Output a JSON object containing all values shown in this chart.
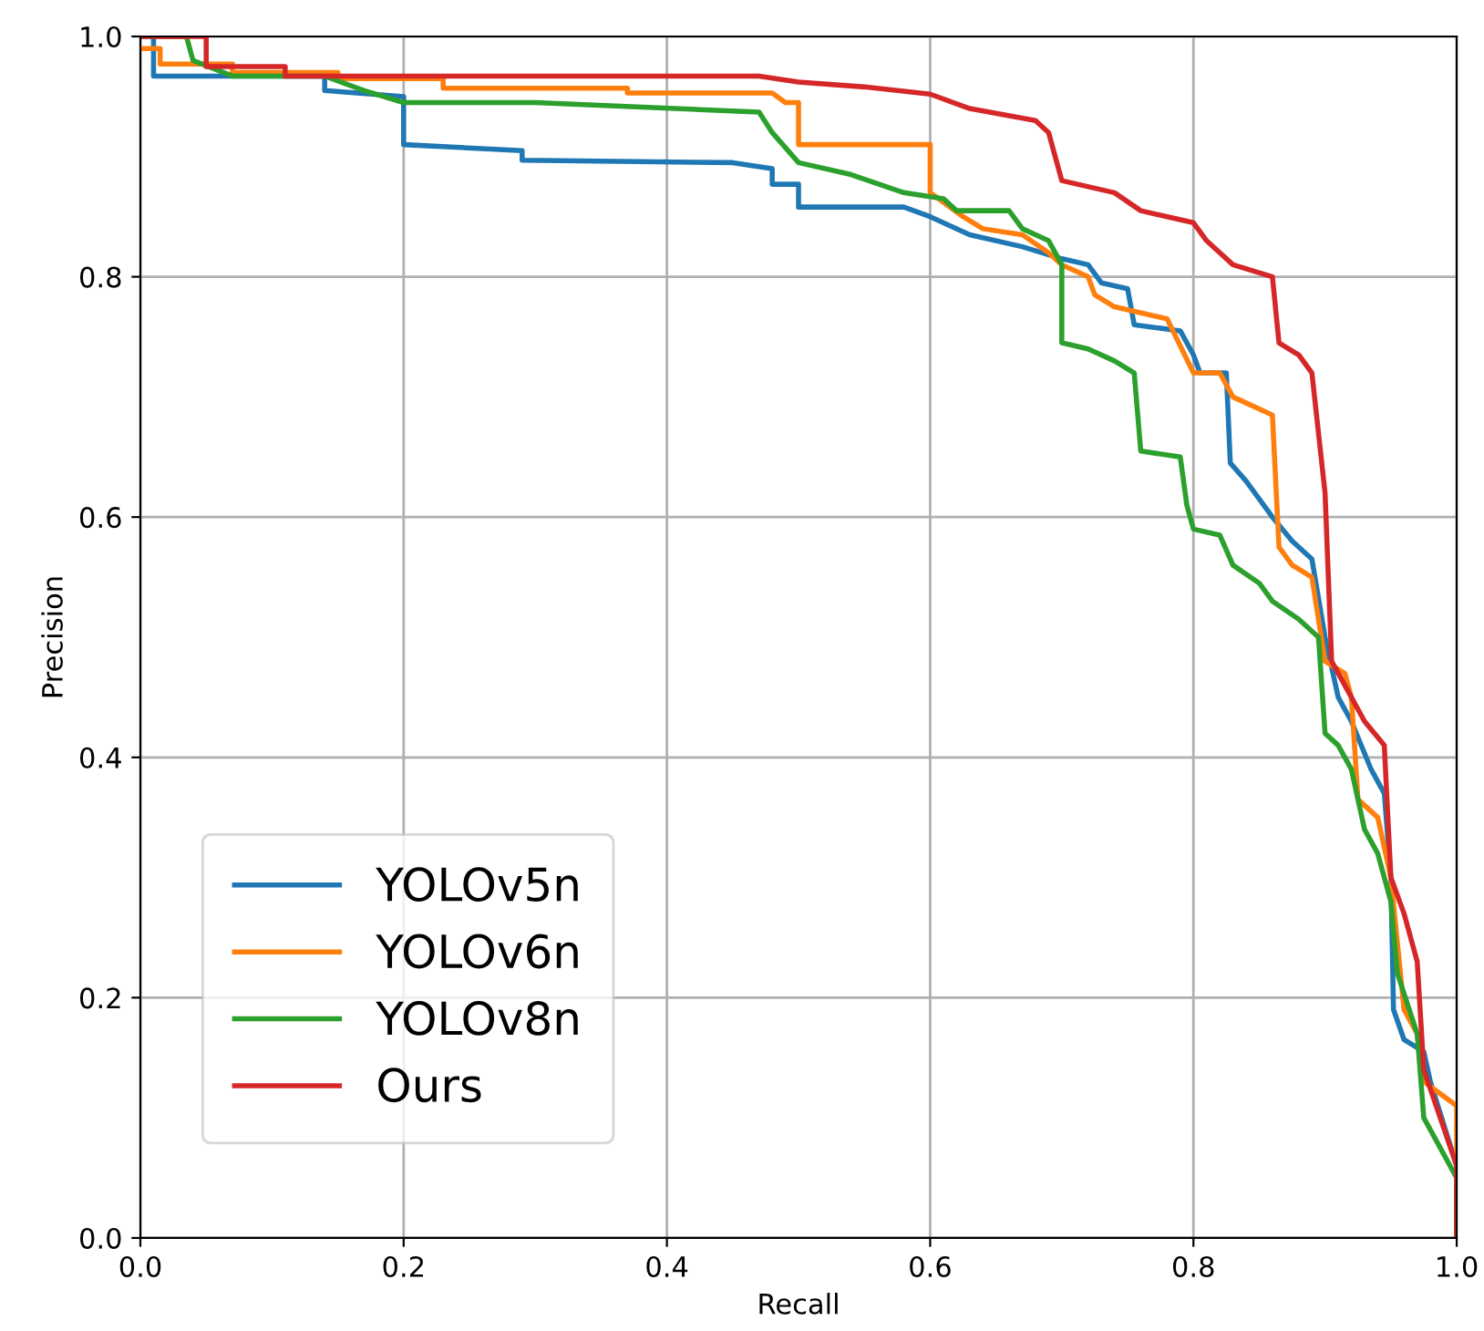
{
  "chart_data": {
    "type": "line",
    "xlabel": "Recall",
    "ylabel": "Precision",
    "xlim": [
      0.0,
      1.0
    ],
    "ylim": [
      0.0,
      1.0
    ],
    "xticks": [
      {
        "value": 0,
        "label": "0.0"
      },
      0.2,
      0.4,
      0.6,
      0.8,
      {
        "value": 1,
        "label": "1.0"
      }
    ],
    "yticks": [
      {
        "value": 0,
        "label": "0.0"
      },
      0.2,
      0.4,
      0.6,
      0.8,
      {
        "value": 1,
        "label": "1.0"
      }
    ],
    "grid": true,
    "legend": "bottom left",
    "line_style": "solid",
    "marker": "none",
    "series": [
      {
        "name": "YOLOv5n",
        "color": "#1f77b4",
        "x": [
          0,
          0.01,
          0.01,
          0.14,
          0.14,
          0.2,
          0.2,
          0.29,
          0.29,
          0.45,
          0.48,
          0.48,
          0.5,
          0.5,
          0.58,
          0.6,
          0.63,
          0.67,
          0.7,
          0.72,
          0.73,
          0.75,
          0.755,
          0.79,
          0.8,
          0.805,
          0.825,
          0.828,
          0.84,
          0.86,
          0.875,
          0.89,
          0.9,
          0.91,
          0.92,
          0.935,
          0.945,
          0.95,
          0.952,
          0.96,
          0.975,
          0.98,
          1.0,
          1.0
        ],
        "values": [
          1.0,
          1.0,
          0.967,
          0.967,
          0.955,
          0.95,
          0.91,
          0.905,
          0.897,
          0.895,
          0.89,
          0.877,
          0.877,
          0.858,
          0.858,
          0.85,
          0.835,
          0.825,
          0.815,
          0.81,
          0.795,
          0.79,
          0.76,
          0.755,
          0.735,
          0.72,
          0.72,
          0.645,
          0.63,
          0.6,
          0.58,
          0.565,
          0.5,
          0.45,
          0.43,
          0.39,
          0.37,
          0.3,
          0.19,
          0.165,
          0.155,
          0.13,
          0.06,
          0.0
        ]
      },
      {
        "name": "YOLOv6n",
        "color": "#ff7f0e",
        "x": [
          0,
          0.015,
          0.015,
          0.07,
          0.07,
          0.15,
          0.15,
          0.23,
          0.23,
          0.37,
          0.37,
          0.48,
          0.49,
          0.5,
          0.5,
          0.6,
          0.6,
          0.625,
          0.64,
          0.67,
          0.69,
          0.7,
          0.72,
          0.725,
          0.74,
          0.78,
          0.8,
          0.82,
          0.83,
          0.86,
          0.865,
          0.875,
          0.89,
          0.9,
          0.915,
          0.92,
          0.925,
          0.94,
          0.95,
          0.96,
          0.97,
          0.975,
          1.0,
          1.0
        ],
        "values": [
          0.99,
          0.99,
          0.977,
          0.977,
          0.97,
          0.97,
          0.965,
          0.965,
          0.957,
          0.957,
          0.953,
          0.953,
          0.945,
          0.945,
          0.91,
          0.91,
          0.87,
          0.85,
          0.84,
          0.835,
          0.82,
          0.81,
          0.8,
          0.785,
          0.775,
          0.765,
          0.72,
          0.72,
          0.7,
          0.685,
          0.575,
          0.56,
          0.55,
          0.48,
          0.47,
          0.45,
          0.365,
          0.35,
          0.3,
          0.19,
          0.17,
          0.13,
          0.11,
          0.0
        ]
      },
      {
        "name": "YOLOv8n",
        "color": "#2ca02c",
        "x": [
          0,
          0.035,
          0.04,
          0.07,
          0.14,
          0.17,
          0.2,
          0.3,
          0.47,
          0.48,
          0.5,
          0.54,
          0.58,
          0.61,
          0.62,
          0.66,
          0.67,
          0.69,
          0.7,
          0.7,
          0.72,
          0.74,
          0.755,
          0.76,
          0.79,
          0.795,
          0.8,
          0.82,
          0.83,
          0.85,
          0.86,
          0.88,
          0.895,
          0.9,
          0.91,
          0.92,
          0.93,
          0.94,
          0.95,
          0.955,
          0.97,
          0.975,
          1.0,
          1.0
        ],
        "values": [
          1.0,
          1.0,
          0.98,
          0.967,
          0.967,
          0.955,
          0.945,
          0.945,
          0.937,
          0.92,
          0.895,
          0.885,
          0.87,
          0.865,
          0.855,
          0.855,
          0.84,
          0.83,
          0.81,
          0.745,
          0.74,
          0.73,
          0.72,
          0.655,
          0.65,
          0.61,
          0.59,
          0.585,
          0.56,
          0.545,
          0.53,
          0.515,
          0.5,
          0.42,
          0.41,
          0.39,
          0.34,
          0.32,
          0.28,
          0.22,
          0.17,
          0.1,
          0.05,
          0.0
        ]
      },
      {
        "name": "Ours",
        "color": "#d62728",
        "x": [
          0,
          0.05,
          0.05,
          0.11,
          0.11,
          0.47,
          0.5,
          0.55,
          0.6,
          0.63,
          0.68,
          0.69,
          0.7,
          0.74,
          0.76,
          0.8,
          0.81,
          0.83,
          0.86,
          0.865,
          0.88,
          0.89,
          0.9,
          0.905,
          0.915,
          0.93,
          0.945,
          0.95,
          0.96,
          0.97,
          0.975,
          1.0,
          1.0
        ],
        "values": [
          1.0,
          1.0,
          0.975,
          0.975,
          0.967,
          0.967,
          0.962,
          0.958,
          0.952,
          0.94,
          0.93,
          0.92,
          0.88,
          0.87,
          0.855,
          0.845,
          0.83,
          0.81,
          0.8,
          0.745,
          0.735,
          0.72,
          0.62,
          0.48,
          0.46,
          0.43,
          0.41,
          0.3,
          0.27,
          0.23,
          0.14,
          0.06,
          0.0
        ]
      }
    ]
  }
}
